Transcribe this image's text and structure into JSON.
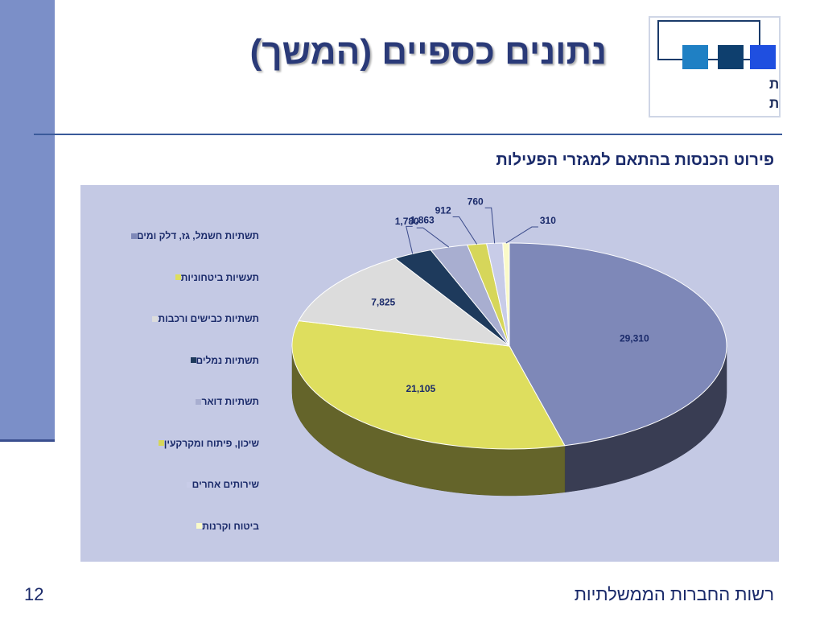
{
  "slide": {
    "title": "נתונים כספיים (המשך)",
    "subtitle": "פירוט הכנסות בהתאם למגזרי הפעילות",
    "footer": "רשות החברות הממשלתיות",
    "page_number": "12"
  },
  "logo": {
    "line1": "רשות החברות",
    "line2": "הממשלתיות",
    "colors": [
      "#1f80c4",
      "#0e3f6e",
      "#1f4fe0"
    ]
  },
  "chart_data": {
    "type": "pie",
    "title": "",
    "categories": [
      "תשתיות חשמל, גז, דלק ומים",
      "תעשיות ביטחוניות",
      "תשתיות כבישים ורכבות",
      "תשתיות נמלים",
      "תשתיות דואר",
      "שיכון, פיתוח ומקרקעין",
      "שירותים אחרים",
      "ביטוח וקרנות"
    ],
    "values": [
      29310,
      21105,
      7825,
      1863,
      1780,
      912,
      760,
      310
    ],
    "value_labels": [
      "29,310",
      "21,105",
      "7,825",
      "1,863",
      "1,780",
      "912",
      "760",
      "310"
    ],
    "colors": [
      "#7e88b8",
      "#dede5e",
      "#dcdcdc",
      "#1e3a5c",
      "#a8aed0",
      "#d6d65a",
      "#c8cce8",
      "#fafac8"
    ],
    "legend_position": "left"
  }
}
